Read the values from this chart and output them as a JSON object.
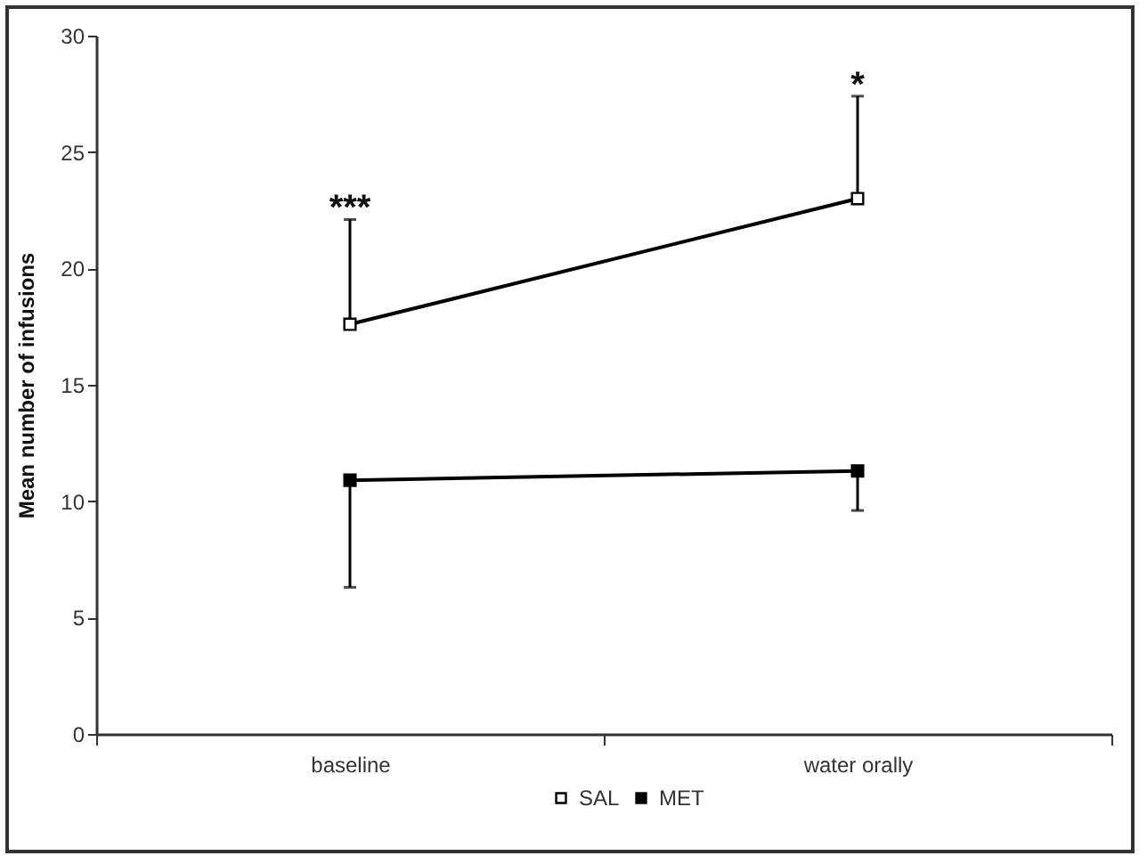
{
  "chart_data": {
    "type": "line",
    "ylabel": "Mean number of infusions",
    "categories": [
      "baseline",
      "water orally"
    ],
    "series": [
      {
        "name": "SAL",
        "color": "#000000",
        "values": [
          17.6,
          23.0
        ],
        "errors": [
          [
            17.6,
            22.1
          ],
          [
            23.0,
            27.4
          ]
        ]
      },
      {
        "name": "MET",
        "color": "#000000",
        "values": [
          10.9,
          11.3
        ],
        "errors": [
          [
            6.3,
            10.9
          ],
          [
            9.6,
            11.3
          ]
        ]
      }
    ],
    "ylim": [
      0,
      30
    ],
    "yticks": [
      0,
      5,
      10,
      15,
      20,
      25,
      30
    ],
    "annotations": [
      "***",
      "*"
    ],
    "marker": "square",
    "line_style": "solid",
    "legend": "bottom",
    "grid": false
  }
}
